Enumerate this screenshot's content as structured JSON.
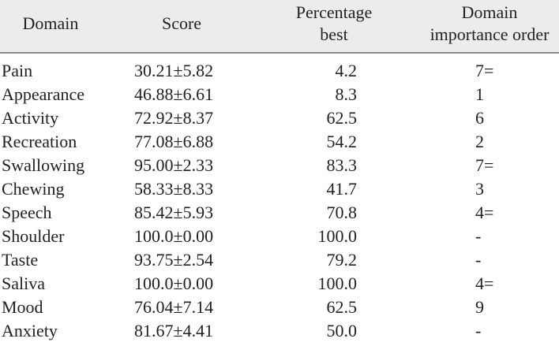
{
  "headers": [
    "Domain",
    "Score",
    "Percentage best",
    "Domain importance order"
  ],
  "header_lines": {
    "percentage": [
      "Percentage",
      "best"
    ],
    "importance": [
      "Domain",
      "importance order"
    ]
  },
  "rows": [
    {
      "domain": "Pain",
      "score": "30.21±5.82",
      "pct": "4.2",
      "order": "7="
    },
    {
      "domain": "Appearance",
      "score": "46.88±6.61",
      "pct": "8.3",
      "order": "1"
    },
    {
      "domain": "Activity",
      "score": "72.92±8.37",
      "pct": "62.5",
      "order": "6"
    },
    {
      "domain": "Recreation",
      "score": "77.08±6.88",
      "pct": "54.2",
      "order": "2"
    },
    {
      "domain": "Swallowing",
      "score": "95.00±2.33",
      "pct": "83.3",
      "order": "7="
    },
    {
      "domain": "Chewing",
      "score": "58.33±8.33",
      "pct": "41.7",
      "order": "3"
    },
    {
      "domain": "Speech",
      "score": "85.42±5.93",
      "pct": "70.8",
      "order": "4="
    },
    {
      "domain": "Shoulder",
      "score": "100.0±0.00",
      "pct": "100.0",
      "order": "-"
    },
    {
      "domain": "Taste",
      "score": "93.75±2.54",
      "pct": "79.2",
      "order": "-"
    },
    {
      "domain": "Saliva",
      "score": "100.0±0.00",
      "pct": "100.0",
      "order": "4="
    },
    {
      "domain": "Mood",
      "score": "76.04±7.14",
      "pct": "62.5",
      "order": "9"
    },
    {
      "domain": "Anxiety",
      "score": "81.67±4.41",
      "pct": "50.0",
      "order": "-"
    }
  ]
}
